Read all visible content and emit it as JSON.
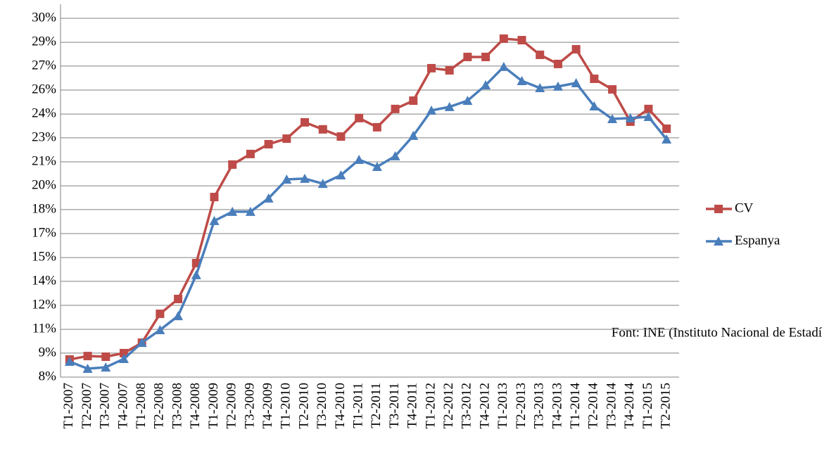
{
  "chart_data": {
    "type": "line",
    "annotation": "Font: INE (Instituto Nacional de Estadí",
    "categories": [
      "T1-2007",
      "T2-2007",
      "T3-2007",
      "T4-2007",
      "T1-2008",
      "T2-2008",
      "T3-2008",
      "T4-2008",
      "T1-2009",
      "T2-2009",
      "T3-2009",
      "T4-2009",
      "T1-2010",
      "T2-2010",
      "T3-2010",
      "T4-2010",
      "T1-2011",
      "T2-2011",
      "T3-2011",
      "T4-2011",
      "T1-2012",
      "T2-2012",
      "T3-2012",
      "T4-2012",
      "T1-2013",
      "T2-2013",
      "T3-2013",
      "T4-2013",
      "T1-2014",
      "T2-2014",
      "T3-2014",
      "T4-2014",
      "T1-2015",
      "T2-2015"
    ],
    "series": [
      {
        "name": "CV",
        "color": "#be4b48",
        "marker": "square",
        "values": [
          9.08,
          9.29,
          9.25,
          9.47,
          10.11,
          11.88,
          12.79,
          14.99,
          19.04,
          21.03,
          21.68,
          22.28,
          22.62,
          23.62,
          23.19,
          22.75,
          23.88,
          23.32,
          24.44,
          24.95,
          26.94,
          26.81,
          27.63,
          27.63,
          28.75,
          28.66,
          27.76,
          27.2,
          28.1,
          26.29,
          25.64,
          23.66,
          24.44,
          23.23
        ]
      },
      {
        "name": "Espanya",
        "color": "#4a7ebb",
        "marker": "triangle",
        "values": [
          8.95,
          8.52,
          8.6,
          9.12,
          10.11,
          10.89,
          11.75,
          14.26,
          17.58,
          18.14,
          18.14,
          18.96,
          20.12,
          20.17,
          19.86,
          20.38,
          21.33,
          20.9,
          21.55,
          22.8,
          24.35,
          24.57,
          24.95,
          25.9,
          27.03,
          26.16,
          25.73,
          25.82,
          26.03,
          24.61,
          23.83,
          23.88,
          23.96,
          22.58
        ]
      }
    ],
    "ylim": [
      8,
      30
    ],
    "yticks": [
      {
        "value": 8,
        "label": "8%"
      },
      {
        "value": 9.47,
        "label": "9%"
      },
      {
        "value": 10.93,
        "label": "11%"
      },
      {
        "value": 12.4,
        "label": "12%"
      },
      {
        "value": 13.87,
        "label": "14%"
      },
      {
        "value": 15.33,
        "label": "15%"
      },
      {
        "value": 16.8,
        "label": "17%"
      },
      {
        "value": 18.27,
        "label": "18%"
      },
      {
        "value": 19.73,
        "label": "20%"
      },
      {
        "value": 21.2,
        "label": "21%"
      },
      {
        "value": 22.67,
        "label": "23%"
      },
      {
        "value": 24.13,
        "label": "24%"
      },
      {
        "value": 25.6,
        "label": "26%"
      },
      {
        "value": 27.07,
        "label": "27%"
      },
      {
        "value": 28.53,
        "label": "29%"
      },
      {
        "value": 30,
        "label": "30%"
      }
    ],
    "grid": true,
    "legend": "right"
  }
}
